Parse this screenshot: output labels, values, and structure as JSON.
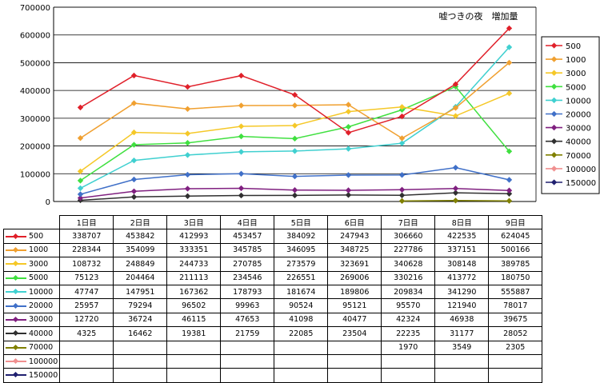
{
  "chart_data": {
    "type": "line",
    "title": "嘘つきの夜　増加量",
    "categories": [
      "1日目",
      "2日目",
      "3日目",
      "4日目",
      "5日目",
      "6日目",
      "7日目",
      "8日目",
      "9日目"
    ],
    "ylim": [
      0,
      700000
    ],
    "yticks": [
      0,
      100000,
      200000,
      300000,
      400000,
      500000,
      600000,
      700000
    ],
    "ytick_labels": [
      "0",
      "100000",
      "200000",
      "300000",
      "400000",
      "500000",
      "600000",
      "700000"
    ],
    "grid": true,
    "legend": "right",
    "series": [
      {
        "name": "500",
        "color": "#e0202a",
        "values": [
          338707,
          453842,
          412993,
          453457,
          384092,
          247943,
          306660,
          422535,
          624045
        ],
        "labels": [
          "338707",
          "453842",
          "412993",
          "453457",
          "384092",
          "247943",
          "306660",
          "422535",
          "624045"
        ]
      },
      {
        "name": "1000",
        "color": "#f0a030",
        "values": [
          228344,
          354099,
          333351,
          345785,
          346095,
          348725,
          227786,
          337151,
          500166
        ],
        "labels": [
          "228344",
          "354099",
          "333351",
          "345785",
          "346095",
          "348725",
          "227786",
          "337151",
          "500166"
        ]
      },
      {
        "name": "3000",
        "color": "#f5c828",
        "values": [
          108732,
          248849,
          244733,
          270785,
          273579,
          323691,
          340628,
          308148,
          389785
        ],
        "labels": [
          "108732",
          "248849",
          "244733",
          "270785",
          "273579",
          "323691",
          "340628",
          "308148",
          "389785"
        ]
      },
      {
        "name": "5000",
        "color": "#40e040",
        "values": [
          75123,
          204464,
          211113,
          234546,
          226551,
          269006,
          330216,
          413772,
          180750
        ],
        "labels": [
          "75123",
          "204464",
          "211113",
          "234546",
          "226551",
          "269006",
          "330216",
          "413772",
          "180750"
        ]
      },
      {
        "name": "10000",
        "color": "#40d0d0",
        "values": [
          47747,
          147951,
          167362,
          178793,
          181674,
          189806,
          209834,
          341290,
          555887
        ],
        "labels": [
          "47747",
          "147951",
          "167362",
          "178793",
          "181674",
          "189806",
          "209834",
          "341290",
          "555887"
        ]
      },
      {
        "name": "20000",
        "color": "#4070c8",
        "values": [
          25957,
          79294,
          96502,
          99963,
          90524,
          95121,
          95570,
          121940,
          78017
        ],
        "labels": [
          "25957",
          "79294",
          "96502",
          "99963",
          "90524",
          "95121",
          "95570",
          "121940",
          "78017"
        ]
      },
      {
        "name": "30000",
        "color": "#802080",
        "values": [
          12720,
          36724,
          46115,
          47653,
          41098,
          40477,
          42324,
          46938,
          39675
        ],
        "labels": [
          "12720",
          "36724",
          "46115",
          "47653",
          "41098",
          "40477",
          "42324",
          "46938",
          "39675"
        ]
      },
      {
        "name": "40000",
        "color": "#303030",
        "values": [
          4325,
          16462,
          19381,
          21759,
          22085,
          23504,
          22235,
          31177,
          28052
        ],
        "labels": [
          "4325",
          "16462",
          "19381",
          "21759",
          "22085",
          "23504",
          "22235",
          "31177",
          "28052"
        ]
      },
      {
        "name": "70000",
        "color": "#808000",
        "values": [
          null,
          null,
          null,
          null,
          null,
          null,
          1970,
          3549,
          2305
        ],
        "labels": [
          "",
          "",
          "",
          "",
          "",
          "",
          "1970",
          "3549",
          "2305"
        ]
      },
      {
        "name": "100000",
        "color": "#f09090",
        "values": [
          null,
          null,
          null,
          null,
          null,
          null,
          null,
          null,
          null
        ],
        "labels": [
          "",
          "",
          "",
          "",
          "",
          "",
          "",
          "",
          ""
        ]
      },
      {
        "name": "150000",
        "color": "#202070",
        "values": [
          null,
          null,
          null,
          null,
          null,
          null,
          null,
          null,
          null
        ],
        "labels": [
          "",
          "",
          "",
          "",
          "",
          "",
          "",
          "",
          ""
        ]
      }
    ]
  }
}
